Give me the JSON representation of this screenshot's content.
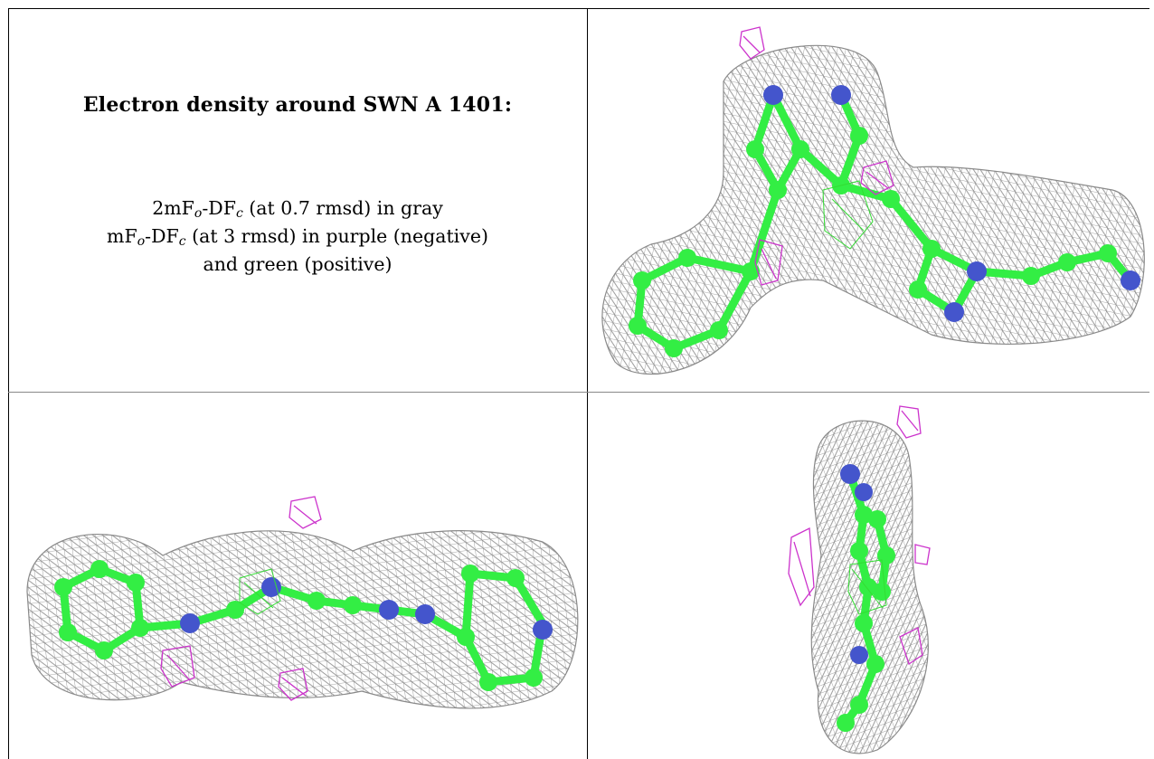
{
  "title": "Electron density around SWN A 1401:",
  "legend": {
    "line1_pre": "2mF",
    "line1_sub1": "o",
    "line1_mid": "-DF",
    "line1_sub2": "c",
    "line1_post": " (at 0.7 rmsd) in gray",
    "line2_pre": "mF",
    "line2_sub1": "o",
    "line2_mid": "-DF",
    "line2_sub2": "c",
    "line2_post": " (at 3 rmsd) in purple (negative)",
    "line3": "and green (positive)"
  },
  "colors": {
    "carbon": "#33ee44",
    "nitrogen": "#4455cc",
    "mesh_gray": "#8a8a8a",
    "negative_density": "#cc33cc",
    "positive_density": "#33dd33"
  },
  "panels": [
    {
      "name": "view-top-right",
      "view": "front"
    },
    {
      "name": "view-bottom-left",
      "view": "side"
    },
    {
      "name": "view-bottom-right",
      "view": "end-on"
    }
  ]
}
